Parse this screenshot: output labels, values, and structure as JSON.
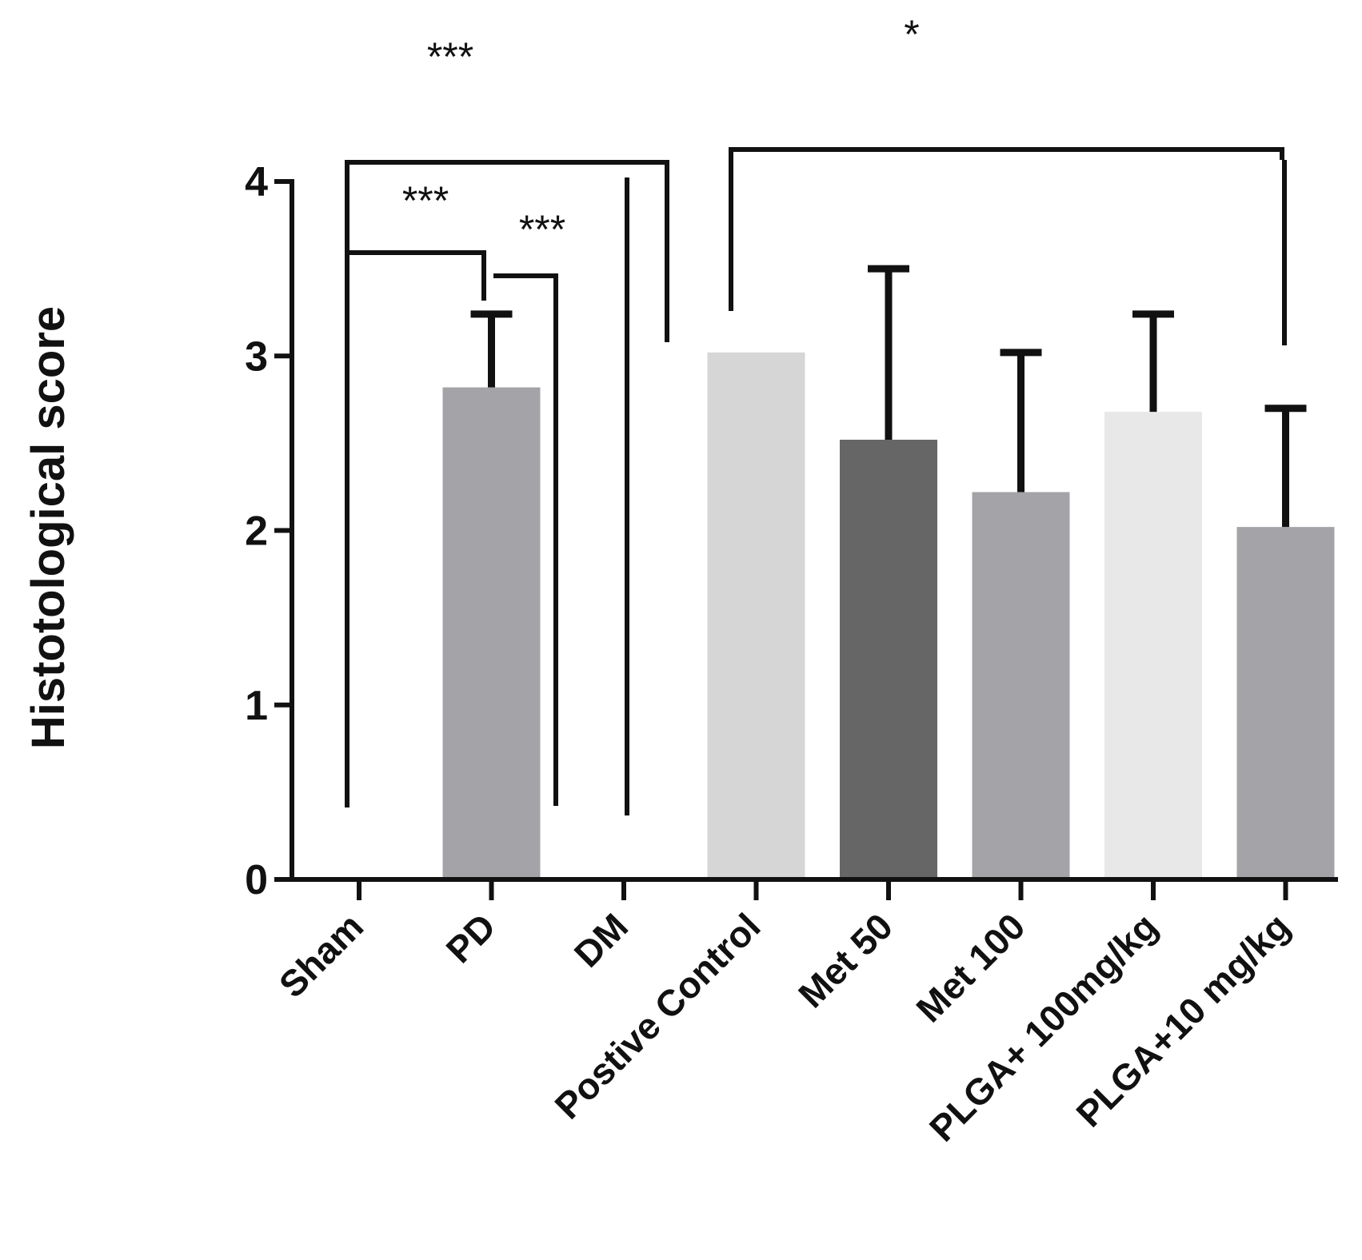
{
  "chart_data": {
    "type": "bar",
    "title": "",
    "xlabel": "",
    "ylabel": "Histotological score",
    "ylim": [
      0,
      4
    ],
    "yticks": [
      0,
      1,
      2,
      3,
      4
    ],
    "categories": [
      "Sham",
      "PD",
      "DM",
      "Postive Control",
      "Met 50",
      "Met 100",
      "PLGA+ 100mg/kg",
      "PLGA+10 mg/kg"
    ],
    "values": [
      0,
      2.82,
      0,
      3.02,
      2.52,
      2.22,
      2.68,
      2.02
    ],
    "errors": [
      0,
      0.42,
      0,
      0,
      0.98,
      0.8,
      0.56,
      0.68
    ],
    "colors": [
      "#a4a3a8",
      "#a4a3a8",
      "#a4a3a8",
      "#d6d6d6",
      "#666666",
      "#a4a3a8",
      "#e8e8e8",
      "#a4a3a8"
    ],
    "significance": [
      {
        "from": "Sham",
        "to": "DM",
        "label": "***"
      },
      {
        "from": "Sham",
        "to": "PD",
        "label": "***"
      },
      {
        "from": "PD",
        "to": "PD",
        "label": "***"
      },
      {
        "from": "Postive Control",
        "to": "PLGA+10 mg/kg",
        "label": "*"
      }
    ]
  }
}
